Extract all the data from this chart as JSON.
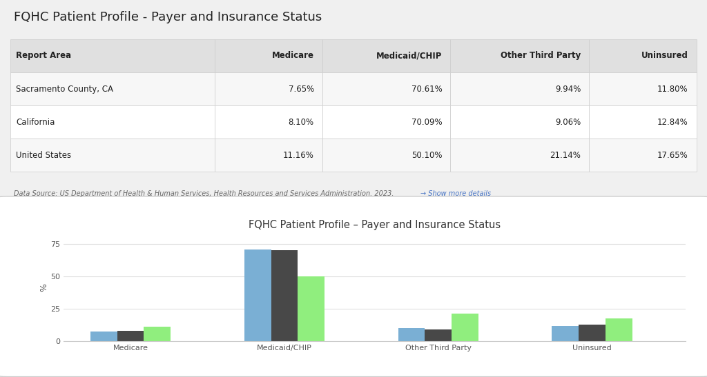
{
  "title": "FQHC Patient Profile - Payer and Insurance Status",
  "table_headers": [
    "Report Area",
    "Medicare",
    "Medicaid/CHIP",
    "Other Third Party",
    "Uninsured"
  ],
  "table_rows": [
    [
      "Sacramento County, CA",
      "7.65%",
      "70.61%",
      "9.94%",
      "11.80%"
    ],
    [
      "California",
      "8.10%",
      "70.09%",
      "9.06%",
      "12.84%"
    ],
    [
      "United States",
      "11.16%",
      "50.10%",
      "21.14%",
      "17.65%"
    ]
  ],
  "datasource_text": "Data Source: US Department of Health & Human Services, Health Resources and Services Administration. 2023.",
  "datasource_link": "→ Show more details",
  "chart_title": "FQHC Patient Profile – Payer and Insurance Status",
  "categories": [
    "Medicare",
    "Medicaid/CHIP",
    "Other Third Party",
    "Uninsured"
  ],
  "series": [
    {
      "label": "Sacramento County, CA",
      "color": "#7aafd4",
      "values": [
        7.65,
        70.61,
        9.94,
        11.8
      ]
    },
    {
      "label": "California",
      "color": "#484848",
      "values": [
        8.1,
        70.09,
        9.06,
        12.84
      ]
    },
    {
      "label": "United States",
      "color": "#90ee7e",
      "values": [
        11.16,
        50.1,
        21.14,
        17.65
      ]
    }
  ],
  "yticks": [
    0,
    25,
    50,
    75
  ],
  "ylabel": "%",
  "chart_bg": "#ffffff",
  "outer_bg": "#f0f0f0",
  "table_header_bg": "#e0e0e0",
  "table_row_bg_alt": "#f7f7f7",
  "table_row_bg_main": "#ffffff",
  "grid_color": "#e0e0e0",
  "border_color": "#cccccc",
  "text_dark": "#222222",
  "text_mid": "#555555"
}
